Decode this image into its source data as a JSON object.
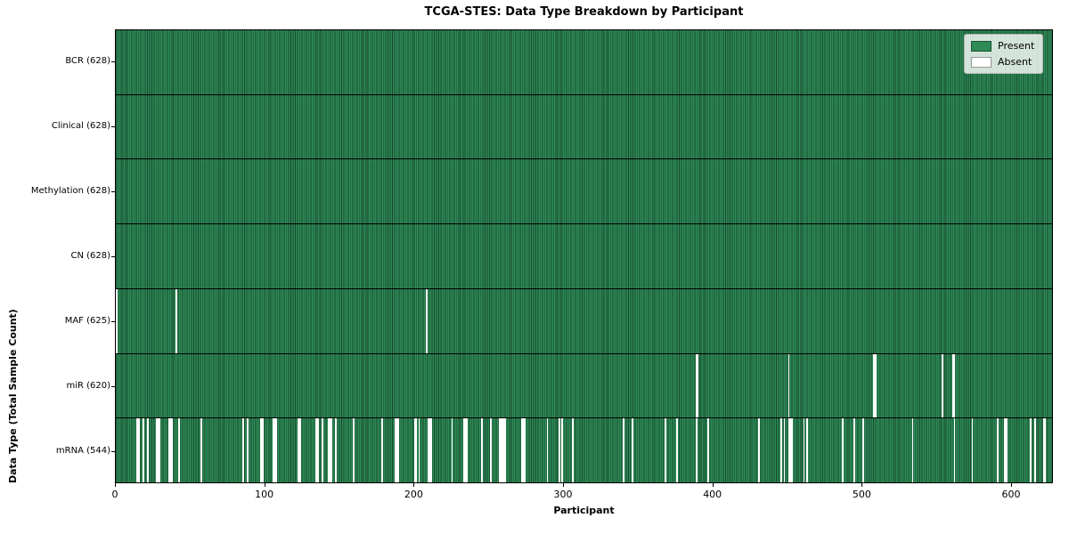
{
  "title": "TCGA-STES: Data Type Breakdown by Participant",
  "xlabel": "Participant",
  "ylabel": "Data Type (Total Sample Count)",
  "legend": {
    "items": [
      {
        "label": "Present",
        "color": "#2e8b57"
      },
      {
        "label": "Absent",
        "color": "#ffffff"
      }
    ]
  },
  "colors": {
    "present_fill": "#2e8b57",
    "present_edge": "#17472b",
    "absent_fill": "#ffffff",
    "row_separator": "#000000",
    "axis": "#000000",
    "legend_border": "#b6b6b6"
  },
  "chart_data": {
    "type": "heatmap",
    "title": "TCGA-STES: Data Type Breakdown by Participant",
    "xlabel": "Participant",
    "ylabel": "Data Type (Total Sample Count)",
    "legend": [
      "Present",
      "Absent"
    ],
    "legend_position": "upper right",
    "grid": false,
    "n_participants": 628,
    "x_ticks": [
      0,
      100,
      200,
      300,
      400,
      500,
      600
    ],
    "xlim": [
      0,
      628
    ],
    "rows": [
      {
        "name": "BCR",
        "label": "BCR (628)",
        "present_count": 628,
        "absent_count": 0,
        "absent_participants": []
      },
      {
        "name": "Clinical",
        "label": "Clinical (628)",
        "present_count": 628,
        "absent_count": 0,
        "absent_participants": []
      },
      {
        "name": "Methylation",
        "label": "Methylation (628)",
        "present_count": 628,
        "absent_count": 0,
        "absent_participants": []
      },
      {
        "name": "CN",
        "label": "CN (628)",
        "present_count": 628,
        "absent_count": 0,
        "absent_participants": []
      },
      {
        "name": "MAF",
        "label": "MAF (625)",
        "present_count": 625,
        "absent_count": 3,
        "absent_participants": [
          0,
          40,
          208
        ]
      },
      {
        "name": "miR",
        "label": "miR (620)",
        "present_count": 620,
        "absent_count": 8,
        "absent_participants": [
          389,
          390,
          451,
          508,
          509,
          554,
          561,
          562
        ]
      },
      {
        "name": "mRNA",
        "label": "mRNA (544)",
        "present_count": 544,
        "absent_count": 84,
        "absent_participants": [
          14,
          15,
          18,
          21,
          27,
          28,
          29,
          35,
          36,
          37,
          42,
          57,
          85,
          88,
          97,
          98,
          105,
          106,
          107,
          122,
          123,
          134,
          135,
          138,
          142,
          143,
          144,
          147,
          159,
          178,
          187,
          188,
          189,
          200,
          201,
          203,
          209,
          210,
          211,
          225,
          233,
          234,
          235,
          245,
          251,
          257,
          258,
          259,
          260,
          261,
          272,
          273,
          274,
          289,
          297,
          299,
          306,
          340,
          346,
          368,
          376,
          389,
          397,
          431,
          446,
          448,
          451,
          452,
          453,
          461,
          463,
          487,
          495,
          501,
          534,
          562,
          574,
          591,
          596,
          597,
          613,
          616,
          622,
          623
        ]
      }
    ]
  }
}
